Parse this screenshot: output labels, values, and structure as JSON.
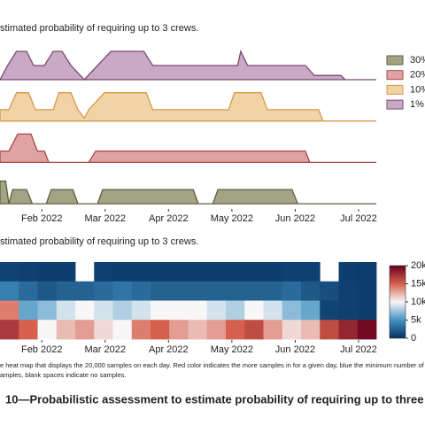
{
  "chart_data": [
    {
      "type": "ridge",
      "title": "stimated probability of requiring up to 3 crews.",
      "xlim": [
        0.34,
        6.28
      ],
      "xticks": [
        {
          "value": 1,
          "label": "Feb 2022"
        },
        {
          "value": 2,
          "label": "Mar 2022"
        },
        {
          "value": 3,
          "label": "Apr 2022"
        },
        {
          "value": 4,
          "label": "May 2022"
        },
        {
          "value": 5,
          "label": "Jun 2022"
        },
        {
          "value": 6,
          "label": "Jul 2022"
        }
      ],
      "series": [
        {
          "name": "30%",
          "color": "#a3a386",
          "edgecolor": "#5e5e3e",
          "x": [
            0.34,
            0.43,
            0.48,
            0.54,
            0.76,
            0.85,
            1.07,
            1.15,
            1.49,
            1.57,
            1.88,
            1.96,
            3.39,
            3.47,
            3.7,
            3.78,
            4.95,
            5.04,
            6.28
          ],
          "values": [
            0.8,
            0.8,
            0,
            0.5,
            0.5,
            0,
            0,
            0.5,
            0.5,
            0,
            0,
            0.5,
            0.5,
            0,
            0,
            0.5,
            0.5,
            0,
            0
          ]
        },
        {
          "name": "20%",
          "color": "#dfa3a3",
          "edgecolor": "#a84848",
          "x": [
            0.34,
            0.48,
            0.62,
            0.83,
            0.93,
            1.04,
            1.11,
            1.74,
            1.85,
            5.16,
            5.23,
            6.28
          ],
          "values": [
            0.4,
            0.4,
            1,
            1,
            0.4,
            0.4,
            0,
            0,
            0.4,
            0.4,
            0,
            0
          ]
        },
        {
          "name": "10%",
          "color": "#f2d3a6",
          "edgecolor": "#d49a4c",
          "x": [
            0.34,
            0.48,
            0.6,
            0.79,
            0.9,
            1.18,
            1.27,
            1.46,
            1.57,
            1.67,
            1.74,
            1.99,
            2.65,
            2.75,
            3.95,
            4.04,
            4.46,
            4.56,
            5.37,
            5.44,
            6.28
          ],
          "values": [
            0.4,
            0.4,
            1,
            1,
            0.4,
            0.4,
            1,
            1,
            0.4,
            0.1,
            0.4,
            1,
            1,
            0.4,
            0.4,
            1,
            1,
            0.4,
            0.4,
            0,
            0
          ]
        },
        {
          "name": "1%",
          "color": "#c9a9c6",
          "edgecolor": "#7a4a6e",
          "x": [
            0.34,
            0.46,
            0.6,
            0.76,
            0.87,
            1.04,
            1.18,
            1.32,
            1.46,
            1.67,
            1.88,
            2.09,
            2.61,
            2.75,
            4.09,
            4.14,
            4.25,
            5.16,
            5.3,
            5.72,
            5.79,
            6.28
          ],
          "values": [
            0,
            0.5,
            1,
            1,
            0.5,
            0.5,
            1,
            1,
            0.5,
            0,
            0.5,
            1,
            1,
            0.5,
            0.5,
            1,
            0.5,
            0.5,
            0.15,
            0.15,
            0,
            0
          ]
        }
      ]
    },
    {
      "type": "heatmap",
      "title": "stimated probability of requiring up to 3 crews.",
      "xlim": [
        0.34,
        6.28
      ],
      "xticks": [
        {
          "value": 1,
          "label": "Feb 2022"
        },
        {
          "value": 2,
          "label": "Mar 2022"
        },
        {
          "value": 3,
          "label": "Apr 2022"
        },
        {
          "value": 4,
          "label": "May 2022"
        },
        {
          "value": 5,
          "label": "Jun 2022"
        },
        {
          "value": 6,
          "label": "Jul 2022"
        }
      ],
      "rows": [
        [
          900,
          800,
          700,
          700,
          null,
          800,
          700,
          700,
          700,
          700,
          700,
          700,
          700,
          700,
          700,
          800,
          800,
          null,
          700,
          600
        ],
        [
          4000,
          3000,
          2000,
          2500,
          2500,
          3000,
          3500,
          3000,
          2500,
          2500,
          2500,
          2500,
          2500,
          2500,
          2500,
          3000,
          2000,
          1500,
          800,
          700
        ],
        [
          14000,
          6000,
          7000,
          9000,
          10000,
          9000,
          8000,
          9000,
          10000,
          10000,
          10000,
          9000,
          8000,
          10000,
          9000,
          7000,
          6000,
          1000,
          800,
          700
        ],
        [
          17000,
          15000,
          10000,
          12000,
          13000,
          11000,
          10000,
          14000,
          15000,
          13000,
          12000,
          13000,
          15000,
          16000,
          13000,
          11000,
          12000,
          16000,
          18000,
          19500
        ]
      ],
      "colorscale": [
        "#053061",
        "#4393c3",
        "#f7f7f7",
        "#d6604d",
        "#67001f"
      ],
      "clim": [
        0,
        20000
      ],
      "cticks": [
        0,
        {
          "value": 5000,
          "label": "5k"
        },
        {
          "value": 10000,
          "label": "10k"
        },
        {
          "value": 15000,
          "label": "15k"
        },
        {
          "value": 20000,
          "label": "20k"
        }
      ]
    }
  ],
  "notes": [
    "e heat map that displays the 20,000 samples on each day. Red color indicates the more samples in for a given day, blue the minimum number of",
    "amples, blank spaces indicate no samples."
  ],
  "caption": "10—Probabilistic assessment to estimate probability of requiring up to three"
}
